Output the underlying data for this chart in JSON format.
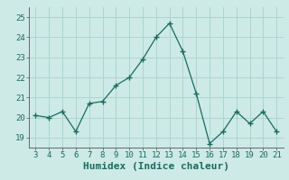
{
  "x": [
    3,
    4,
    5,
    6,
    7,
    8,
    9,
    10,
    11,
    12,
    13,
    14,
    15,
    16,
    17,
    18,
    19,
    20,
    21
  ],
  "y": [
    20.1,
    20.0,
    20.3,
    19.3,
    20.7,
    20.8,
    21.6,
    22.0,
    22.9,
    24.0,
    24.7,
    23.3,
    21.2,
    18.7,
    19.3,
    20.3,
    19.7,
    20.3,
    19.3
  ],
  "xlabel": "Humidex (Indice chaleur)",
  "ylim": [
    18.5,
    25.5
  ],
  "xlim": [
    2.5,
    21.5
  ],
  "bg_color": "#cdeae7",
  "grid_color": "#aed4d0",
  "line_color": "#1a6b5e",
  "marker_color": "#1a6b5e",
  "xlabel_fontsize": 8,
  "tick_fontsize": 6.5,
  "yticks": [
    19,
    20,
    21,
    22,
    23,
    24,
    25
  ],
  "xticks": [
    3,
    4,
    5,
    6,
    7,
    8,
    9,
    10,
    11,
    12,
    13,
    14,
    15,
    16,
    17,
    18,
    19,
    20,
    21
  ]
}
